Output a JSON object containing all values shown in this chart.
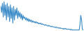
{
  "line_color": "#3a8bc8",
  "background_color": "#f0f0f0",
  "linewidth": 0.8,
  "y_values": [
    32,
    24,
    36,
    18,
    38,
    20,
    34,
    14,
    36,
    18,
    32,
    12,
    34,
    16,
    30,
    10,
    32,
    14,
    28,
    20,
    30,
    16,
    26,
    18,
    24,
    16,
    22,
    14,
    20,
    16,
    18,
    14,
    17,
    13,
    16,
    12,
    15,
    12,
    14,
    11,
    13,
    11,
    12,
    10,
    12,
    10,
    11,
    9,
    10,
    9,
    10,
    8,
    9,
    8,
    8,
    7,
    8,
    7,
    7,
    6,
    7,
    6,
    6,
    5,
    6,
    5,
    5,
    5,
    4,
    5,
    4,
    4,
    4,
    3,
    4,
    3,
    3,
    3,
    2,
    3,
    2,
    3,
    2,
    2,
    2,
    2,
    2,
    1,
    2,
    1,
    1,
    1,
    1,
    1,
    1,
    1,
    1,
    1,
    1,
    8,
    20,
    14,
    2,
    1
  ]
}
